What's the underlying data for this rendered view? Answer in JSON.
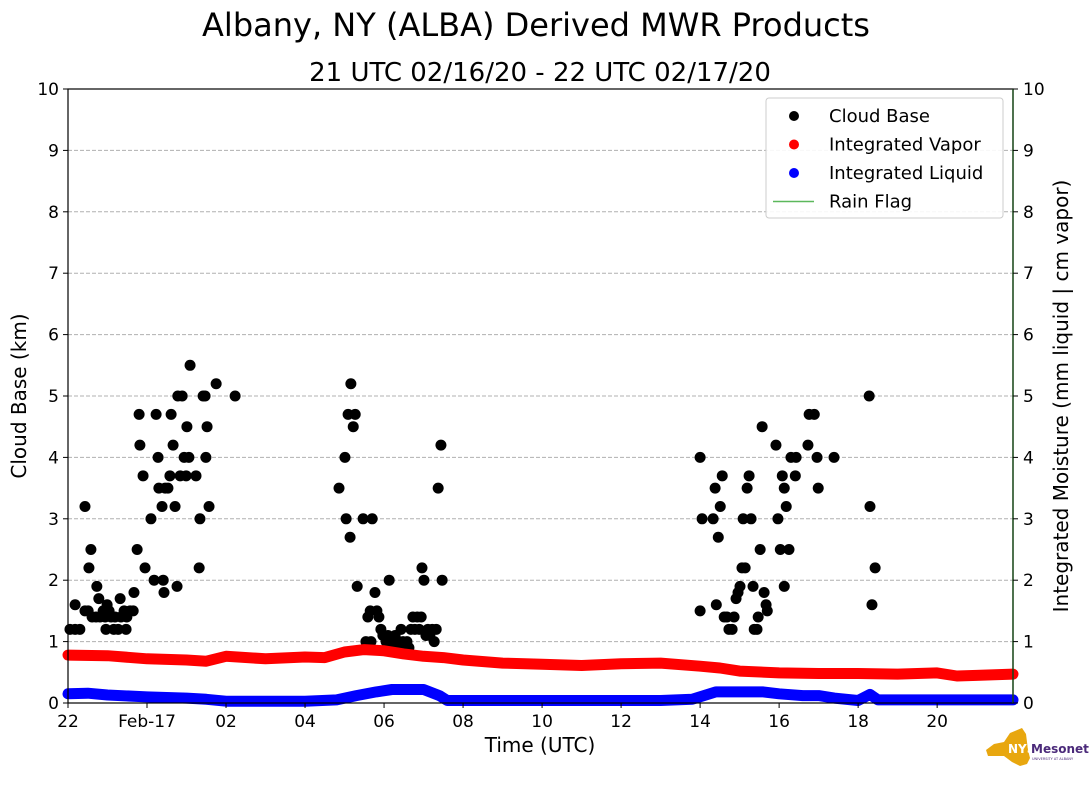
{
  "chart_data": {
    "type": "scatter",
    "title": "Albany, NY (ALBA) Derived MWR Products",
    "subtitle": "21 UTC 02/16/20 - 22 UTC 02/17/20",
    "xlabel": "Time (UTC)",
    "ylabel": "Cloud Base (km)",
    "y2label": "Integrated Moisture (mm liquid | cm vapor)",
    "x_units": "hours since 00 UTC 02/16/20",
    "xlim": [
      22,
      45.92
    ],
    "ylim": [
      0,
      10
    ],
    "y2lim": [
      0,
      10
    ],
    "grid": true,
    "legend_position": "top-right",
    "xticks": [
      {
        "value": 22,
        "label": "22"
      },
      {
        "value": 24,
        "label": "Feb-17"
      },
      {
        "value": 26,
        "label": "02"
      },
      {
        "value": 28,
        "label": "04"
      },
      {
        "value": 30,
        "label": "06"
      },
      {
        "value": 32,
        "label": "08"
      },
      {
        "value": 34,
        "label": "10"
      },
      {
        "value": 36,
        "label": "12"
      },
      {
        "value": 38,
        "label": "14"
      },
      {
        "value": 40,
        "label": "16"
      },
      {
        "value": 42,
        "label": "18"
      },
      {
        "value": 44,
        "label": "20"
      }
    ],
    "yticks": [
      "0",
      "1",
      "2",
      "3",
      "4",
      "5",
      "6",
      "7",
      "8",
      "9",
      "10"
    ],
    "legend": [
      {
        "name": "Cloud Base",
        "color": "#000000",
        "marker": "dot"
      },
      {
        "name": "Integrated Vapor",
        "color": "#ff0000",
        "marker": "dot"
      },
      {
        "name": "Integrated Liquid",
        "color": "#0000ff",
        "marker": "dot"
      },
      {
        "name": "Rain Flag",
        "color": "#5cb85c",
        "marker": "line"
      }
    ],
    "series": [
      {
        "name": "Cloud Base",
        "axis": "left",
        "color": "#000000",
        "points": [
          [
            22.05,
            1.2
          ],
          [
            22.18,
            1.2
          ],
          [
            22.3,
            1.2
          ],
          [
            22.18,
            1.6
          ],
          [
            22.43,
            1.5
          ],
          [
            22.43,
            3.2
          ],
          [
            22.51,
            1.5
          ],
          [
            22.53,
            2.2
          ],
          [
            22.58,
            2.5
          ],
          [
            22.61,
            1.4
          ],
          [
            22.71,
            1.4
          ],
          [
            22.73,
            1.9
          ],
          [
            22.78,
            1.7
          ],
          [
            22.81,
            1.4
          ],
          [
            22.89,
            1.5
          ],
          [
            22.94,
            1.4
          ],
          [
            22.96,
            1.2
          ],
          [
            22.99,
            1.6
          ],
          [
            23.04,
            1.5
          ],
          [
            23.09,
            1.4
          ],
          [
            23.16,
            1.2
          ],
          [
            23.19,
            1.4
          ],
          [
            23.27,
            1.2
          ],
          [
            23.32,
            1.7
          ],
          [
            23.34,
            1.4
          ],
          [
            23.42,
            1.5
          ],
          [
            23.47,
            1.2
          ],
          [
            23.49,
            1.4
          ],
          [
            23.57,
            1.5
          ],
          [
            23.65,
            1.5
          ],
          [
            23.67,
            1.8
          ],
          [
            23.75,
            2.5
          ],
          [
            23.8,
            4.7
          ],
          [
            23.82,
            4.2
          ],
          [
            23.9,
            3.7
          ],
          [
            23.95,
            2.2
          ],
          [
            24.1,
            3.0
          ],
          [
            24.18,
            2.0
          ],
          [
            24.23,
            4.7
          ],
          [
            24.28,
            4.0
          ],
          [
            24.3,
            3.5
          ],
          [
            24.38,
            3.2
          ],
          [
            24.41,
            2.0
          ],
          [
            24.43,
            1.8
          ],
          [
            24.46,
            3.5
          ],
          [
            24.53,
            3.5
          ],
          [
            24.58,
            3.7
          ],
          [
            24.61,
            4.7
          ],
          [
            24.66,
            4.2
          ],
          [
            24.71,
            3.2
          ],
          [
            24.76,
            1.9
          ],
          [
            24.78,
            5.0
          ],
          [
            24.84,
            3.7
          ],
          [
            24.89,
            5.0
          ],
          [
            24.94,
            4.0
          ],
          [
            24.99,
            3.7
          ],
          [
            25.01,
            4.5
          ],
          [
            25.06,
            4.0
          ],
          [
            25.09,
            5.5
          ],
          [
            25.24,
            3.7
          ],
          [
            25.32,
            2.2
          ],
          [
            25.34,
            3.0
          ],
          [
            25.42,
            5.0
          ],
          [
            25.47,
            5.0
          ],
          [
            25.49,
            4.0
          ],
          [
            25.52,
            4.5
          ],
          [
            25.57,
            3.2
          ],
          [
            25.75,
            5.2
          ],
          [
            26.23,
            5.0
          ],
          [
            28.86,
            3.5
          ],
          [
            29.01,
            4.0
          ],
          [
            29.04,
            3.0
          ],
          [
            29.09,
            4.7
          ],
          [
            29.14,
            2.7
          ],
          [
            29.16,
            5.2
          ],
          [
            29.22,
            4.5
          ],
          [
            29.27,
            4.7
          ],
          [
            29.32,
            1.9
          ],
          [
            29.47,
            3.0
          ],
          [
            29.54,
            1.0
          ],
          [
            29.59,
            1.4
          ],
          [
            29.65,
            1.5
          ],
          [
            29.67,
            1.0
          ],
          [
            29.7,
            3.0
          ],
          [
            29.77,
            1.8
          ],
          [
            29.82,
            1.5
          ],
          [
            29.87,
            1.4
          ],
          [
            29.92,
            1.2
          ],
          [
            29.97,
            1.1
          ],
          [
            30.05,
            1.0
          ],
          [
            30.1,
            1.1
          ],
          [
            30.13,
            2.0
          ],
          [
            30.18,
            0.95
          ],
          [
            30.23,
            0.9
          ],
          [
            30.28,
            1.1
          ],
          [
            30.33,
            0.9
          ],
          [
            30.38,
            1.0
          ],
          [
            30.43,
            1.2
          ],
          [
            30.48,
            1.0
          ],
          [
            30.53,
            0.9
          ],
          [
            30.58,
            1.0
          ],
          [
            30.63,
            0.9
          ],
          [
            30.68,
            1.2
          ],
          [
            30.73,
            1.4
          ],
          [
            30.78,
            1.2
          ],
          [
            30.84,
            1.4
          ],
          [
            30.89,
            1.2
          ],
          [
            30.94,
            1.4
          ],
          [
            30.96,
            2.2
          ],
          [
            31.01,
            2.0
          ],
          [
            31.06,
            1.1
          ],
          [
            31.11,
            1.2
          ],
          [
            31.16,
            1.1
          ],
          [
            31.22,
            1.2
          ],
          [
            31.27,
            1.0
          ],
          [
            31.32,
            1.2
          ],
          [
            31.37,
            3.5
          ],
          [
            31.44,
            4.2
          ],
          [
            31.47,
            2.0
          ],
          [
            38.0,
            4.0
          ],
          [
            38.0,
            1.5
          ],
          [
            38.05,
            3.0
          ],
          [
            38.33,
            3.0
          ],
          [
            38.38,
            3.5
          ],
          [
            38.41,
            1.6
          ],
          [
            38.46,
            2.7
          ],
          [
            38.51,
            3.2
          ],
          [
            38.56,
            3.7
          ],
          [
            38.61,
            1.4
          ],
          [
            38.68,
            1.4
          ],
          [
            38.73,
            1.2
          ],
          [
            38.81,
            1.2
          ],
          [
            38.86,
            1.4
          ],
          [
            38.91,
            1.7
          ],
          [
            38.96,
            1.8
          ],
          [
            39.01,
            1.9
          ],
          [
            39.06,
            2.2
          ],
          [
            39.09,
            3.0
          ],
          [
            39.14,
            2.2
          ],
          [
            39.19,
            3.5
          ],
          [
            39.24,
            3.7
          ],
          [
            39.29,
            3.0
          ],
          [
            39.34,
            1.9
          ],
          [
            39.37,
            1.2
          ],
          [
            39.44,
            1.2
          ],
          [
            39.47,
            1.4
          ],
          [
            39.52,
            2.5
          ],
          [
            39.57,
            4.5
          ],
          [
            39.62,
            1.8
          ],
          [
            39.67,
            1.6
          ],
          [
            39.7,
            1.5
          ],
          [
            39.92,
            4.2
          ],
          [
            39.97,
            3.0
          ],
          [
            40.03,
            2.5
          ],
          [
            40.08,
            3.7
          ],
          [
            40.13,
            1.9
          ],
          [
            40.13,
            3.5
          ],
          [
            40.18,
            3.2
          ],
          [
            40.25,
            2.5
          ],
          [
            40.3,
            4.0
          ],
          [
            40.41,
            3.7
          ],
          [
            40.43,
            4.0
          ],
          [
            40.73,
            4.2
          ],
          [
            40.76,
            4.7
          ],
          [
            40.89,
            4.7
          ],
          [
            40.96,
            4.0
          ],
          [
            40.99,
            3.5
          ],
          [
            41.39,
            4.0
          ],
          [
            42.28,
            5.0
          ],
          [
            42.3,
            3.2
          ],
          [
            42.35,
            1.6
          ],
          [
            42.43,
            2.2
          ]
        ]
      },
      {
        "name": "Integrated Vapor",
        "axis": "right",
        "color": "#ff0000",
        "points": [
          [
            22,
            0.78
          ],
          [
            23,
            0.77
          ],
          [
            24,
            0.72
          ],
          [
            25,
            0.7
          ],
          [
            25.5,
            0.68
          ],
          [
            26,
            0.76
          ],
          [
            27,
            0.72
          ],
          [
            28,
            0.75
          ],
          [
            28.5,
            0.74
          ],
          [
            29,
            0.83
          ],
          [
            29.5,
            0.87
          ],
          [
            30,
            0.85
          ],
          [
            30.5,
            0.8
          ],
          [
            31,
            0.76
          ],
          [
            31.5,
            0.74
          ],
          [
            32,
            0.7
          ],
          [
            33,
            0.65
          ],
          [
            34,
            0.63
          ],
          [
            35,
            0.61
          ],
          [
            36,
            0.64
          ],
          [
            37,
            0.65
          ],
          [
            38,
            0.6
          ],
          [
            38.5,
            0.57
          ],
          [
            39,
            0.52
          ],
          [
            40,
            0.49
          ],
          [
            41,
            0.48
          ],
          [
            42,
            0.48
          ],
          [
            43,
            0.47
          ],
          [
            44,
            0.49
          ],
          [
            44.5,
            0.44
          ],
          [
            45,
            0.45
          ],
          [
            45.92,
            0.47
          ]
        ]
      },
      {
        "name": "Integrated Liquid",
        "axis": "right",
        "color": "#0000ff",
        "points": [
          [
            22,
            0.15
          ],
          [
            22.5,
            0.16
          ],
          [
            23,
            0.13
          ],
          [
            24,
            0.1
          ],
          [
            25,
            0.08
          ],
          [
            25.5,
            0.06
          ],
          [
            26,
            0.03
          ],
          [
            27,
            0.03
          ],
          [
            28,
            0.03
          ],
          [
            28.8,
            0.05
          ],
          [
            29.3,
            0.12
          ],
          [
            29.8,
            0.18
          ],
          [
            30.2,
            0.22
          ],
          [
            30.6,
            0.22
          ],
          [
            31,
            0.22
          ],
          [
            31.4,
            0.12
          ],
          [
            31.6,
            0.04
          ],
          [
            33,
            0.04
          ],
          [
            35,
            0.04
          ],
          [
            37,
            0.04
          ],
          [
            37.8,
            0.06
          ],
          [
            38.4,
            0.18
          ],
          [
            39,
            0.18
          ],
          [
            39.6,
            0.18
          ],
          [
            40,
            0.15
          ],
          [
            40.6,
            0.12
          ],
          [
            41,
            0.12
          ],
          [
            41.4,
            0.08
          ],
          [
            42,
            0.04
          ],
          [
            42.3,
            0.14
          ],
          [
            42.5,
            0.05
          ],
          [
            43,
            0.05
          ],
          [
            44,
            0.05
          ],
          [
            45.92,
            0.05
          ]
        ]
      },
      {
        "name": "Rain Flag",
        "axis": "right",
        "color": "#5cb85c",
        "points": []
      }
    ]
  },
  "logo": {
    "text": "NYS Mesonet",
    "subtext": "UNIVERSITY AT ALBANY"
  }
}
